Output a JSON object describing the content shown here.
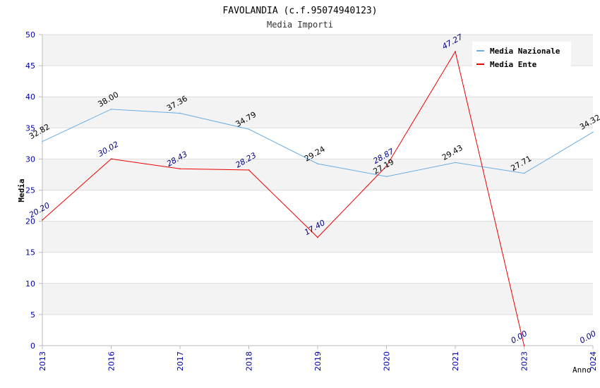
{
  "chart_data": {
    "type": "line",
    "title": "FAVOLANDIA (c.f.95074940123)",
    "subtitle": "Media Importi",
    "xlabel": "Anno",
    "ylabel": "Media",
    "categories": [
      "2013",
      "2016",
      "2017",
      "2018",
      "2019",
      "2020",
      "2021",
      "2023",
      "2024"
    ],
    "ylim": [
      0,
      50
    ],
    "yticks": [
      0,
      5,
      10,
      15,
      20,
      25,
      30,
      35,
      40,
      45,
      50
    ],
    "grid": true,
    "legend_position": "top-right",
    "series": [
      {
        "name": "Media Nazionale",
        "color": "#6aade4",
        "label_color": "#000000",
        "values": [
          32.82,
          38.0,
          37.36,
          34.79,
          29.24,
          27.19,
          29.43,
          27.71,
          34.32
        ],
        "labels": [
          "32.82",
          "38.00",
          "37.36",
          "34.79",
          "29.24",
          "27.19",
          "29.43",
          "27.71",
          "34.32"
        ]
      },
      {
        "name": "Media Ente",
        "color": "#ee0000",
        "label_color": "#000080",
        "values": [
          20.2,
          30.02,
          28.43,
          28.23,
          17.4,
          28.87,
          47.27,
          0.0,
          null
        ],
        "labels": [
          "20.20",
          "30.02",
          "28.43",
          "28.23",
          "17.40",
          "28.87",
          "47.27",
          "0.00",
          "0.00"
        ]
      }
    ],
    "colors": {
      "tick_label": "#0000aa",
      "band": "#f3f3f3",
      "gridline": "#dddddd",
      "axis": "#bbbbbb"
    }
  }
}
